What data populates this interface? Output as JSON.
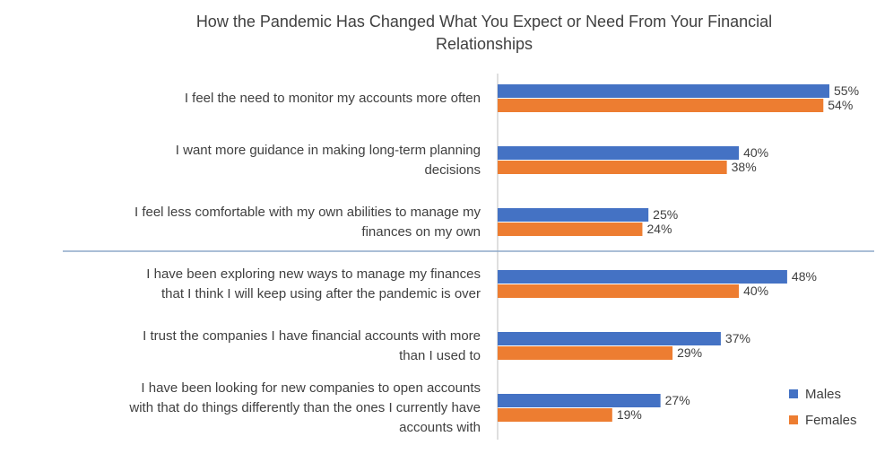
{
  "chart_data": {
    "type": "bar",
    "orientation": "horizontal",
    "title_lines": [
      "How the Pandemic Has Changed What You Expect or Need From Your Financial",
      "Relationships"
    ],
    "categories": [
      [
        "I feel the need to monitor my accounts more often"
      ],
      [
        "I want more guidance in making long-term planning",
        "decisions"
      ],
      [
        "I feel less comfortable with my own abilities to manage my",
        "finances on my own"
      ],
      [
        "I have been exploring new ways to manage my finances",
        "that I think I will keep using after the pandemic is over"
      ],
      [
        "I trust the companies I have financial accounts with more",
        "than I used to"
      ],
      [
        "I have been looking for new companies to open accounts",
        "with that do things differently than the ones I currently have",
        "accounts with"
      ]
    ],
    "series": [
      {
        "name": "Males",
        "color": "#4472C4",
        "values": [
          55,
          40,
          25,
          48,
          37,
          27
        ],
        "labels": [
          "55%",
          "40%",
          "25%",
          "48%",
          "37%",
          "27%"
        ]
      },
      {
        "name": "Females",
        "color": "#ED7D31",
        "values": [
          54,
          38,
          24,
          40,
          29,
          19
        ],
        "labels": [
          "54%",
          "38%",
          "24%",
          "40%",
          "29%",
          "19%"
        ]
      }
    ],
    "xlim": [
      0,
      55
    ],
    "value_suffix": "%",
    "legend": "bottom-right",
    "grid": false,
    "separator_after_category": 3,
    "colors": {
      "text": "#404040",
      "axis": "#BFBFBF",
      "separator": "#8EA9C8"
    }
  }
}
